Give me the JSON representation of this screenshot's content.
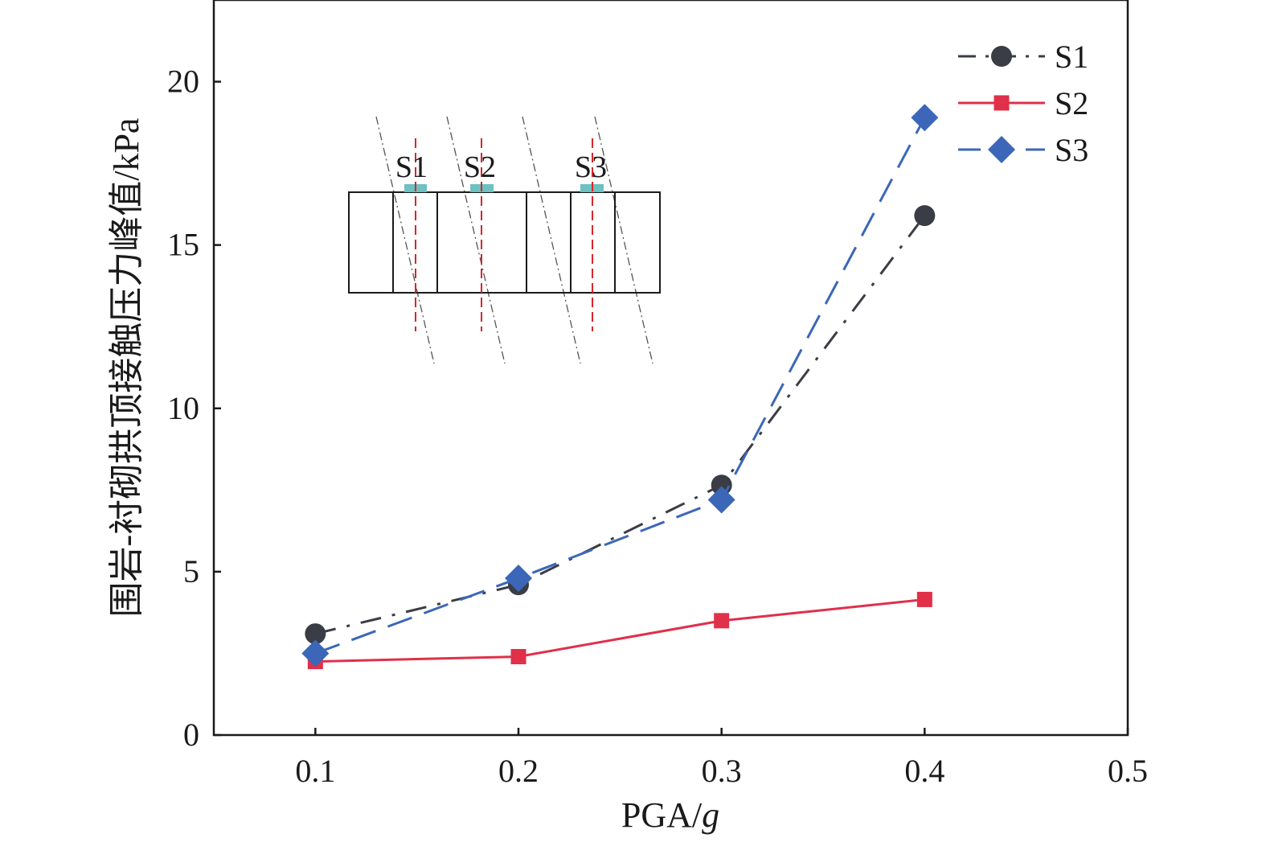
{
  "chart_data": {
    "type": "line",
    "title": "",
    "xlabel": "PGA/",
    "xlabel_italic": "g",
    "ylabel": "围岩-衬砌拱顶接触压力峰值/kPa",
    "xlim": [
      0.05,
      0.5
    ],
    "ylim": [
      0,
      22.5
    ],
    "xticks": [
      "0.1",
      "0.2",
      "0.3",
      "0.4",
      "0.5"
    ],
    "yticks": [
      "0",
      "5",
      "10",
      "15",
      "20"
    ],
    "x": [
      0.1,
      0.2,
      0.3,
      0.4
    ],
    "grid": false,
    "legend_position": "top-right",
    "series": [
      {
        "name": "S1",
        "values": [
          3.1,
          4.6,
          7.65,
          15.9
        ],
        "color": "#3a3d45",
        "marker": "circle",
        "line": "dash-dot"
      },
      {
        "name": "S2",
        "values": [
          2.25,
          2.4,
          3.5,
          4.15
        ],
        "color": "#e0304a",
        "marker": "square",
        "line": "solid"
      },
      {
        "name": "S3",
        "values": [
          2.5,
          4.8,
          7.2,
          18.9
        ],
        "color": "#3c67b8",
        "marker": "diamond",
        "line": "dashed"
      }
    ],
    "inset": {
      "labels": [
        "S1",
        "S2",
        "S3"
      ],
      "sensor_color": "#6cc1c1",
      "section_line_color": "#d7262b"
    }
  }
}
